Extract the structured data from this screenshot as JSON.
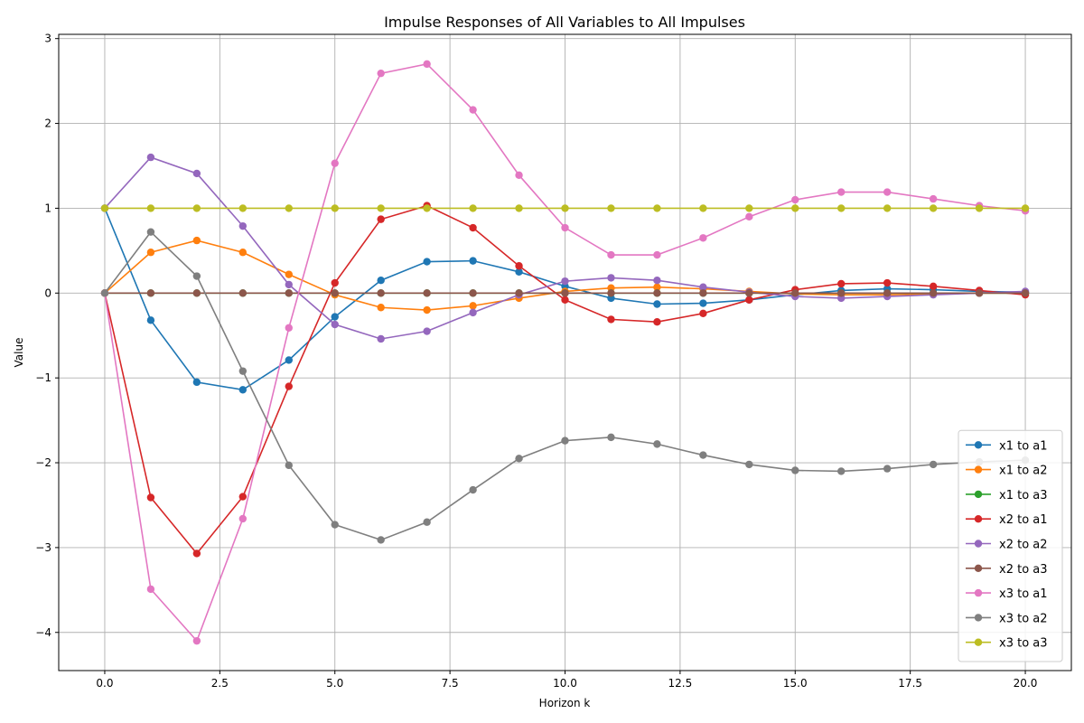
{
  "chart_data": {
    "type": "line",
    "title": "Impulse Responses of All Variables to All Impulses",
    "xlabel": "Horizon k",
    "ylabel": "Value",
    "xlim": [
      -1,
      21
    ],
    "ylim": [
      -4.45,
      3.05
    ],
    "x_ticks": [
      0,
      2.5,
      5,
      7.5,
      10,
      12.5,
      15,
      17.5,
      20
    ],
    "x_tick_labels": [
      "0.0",
      "2.5",
      "5.0",
      "7.5",
      "10.0",
      "12.5",
      "15.0",
      "17.5",
      "20.0"
    ],
    "y_ticks": [
      -4,
      -3,
      -2,
      -1,
      0,
      1,
      2,
      3
    ],
    "y_tick_labels": [
      "−4",
      "−3",
      "−2",
      "−1",
      "0",
      "1",
      "2",
      "3"
    ],
    "grid": true,
    "legend_position": "lower-right",
    "x": [
      0,
      1,
      2,
      3,
      4,
      5,
      6,
      7,
      8,
      9,
      10,
      11,
      12,
      13,
      14,
      15,
      16,
      17,
      18,
      19,
      20
    ],
    "series": [
      {
        "name": "x1 to a1",
        "color": "#1f77b4",
        "values": [
          1.0,
          -0.32,
          -1.05,
          -1.14,
          -0.79,
          -0.28,
          0.15,
          0.37,
          0.38,
          0.25,
          0.08,
          -0.06,
          -0.13,
          -0.12,
          -0.08,
          -0.02,
          0.03,
          0.05,
          0.04,
          0.02,
          0.01
        ]
      },
      {
        "name": "x1 to a2",
        "color": "#ff7f0e",
        "values": [
          0.0,
          0.48,
          0.62,
          0.48,
          0.22,
          -0.02,
          -0.17,
          -0.2,
          -0.15,
          -0.06,
          0.02,
          0.06,
          0.07,
          0.05,
          0.02,
          -0.01,
          -0.02,
          -0.02,
          -0.01,
          0.0,
          0.0
        ]
      },
      {
        "name": "x1 to a3",
        "color": "#2ca02c",
        "values": [
          0,
          0,
          0,
          0,
          0,
          0,
          0,
          0,
          0,
          0,
          0,
          0,
          0,
          0,
          0,
          0,
          0,
          0,
          0,
          0,
          0
        ]
      },
      {
        "name": "x2 to a1",
        "color": "#d62728",
        "values": [
          0.0,
          -2.41,
          -3.07,
          -2.4,
          -1.1,
          0.12,
          0.87,
          1.03,
          0.77,
          0.32,
          -0.08,
          -0.31,
          -0.34,
          -0.24,
          -0.08,
          0.04,
          0.11,
          0.12,
          0.08,
          0.03,
          -0.02
        ]
      },
      {
        "name": "x2 to a2",
        "color": "#9467bd",
        "values": [
          1.0,
          1.6,
          1.41,
          0.79,
          0.1,
          -0.37,
          -0.54,
          -0.45,
          -0.23,
          -0.02,
          0.14,
          0.18,
          0.15,
          0.07,
          0.01,
          -0.04,
          -0.06,
          -0.04,
          -0.02,
          0.0,
          0.02
        ]
      },
      {
        "name": "x2 to a3",
        "color": "#8c564b",
        "values": [
          0,
          0,
          0,
          0,
          0,
          0,
          0,
          0,
          0,
          0,
          0,
          0,
          0,
          0,
          0,
          0,
          0,
          0,
          0,
          0,
          0
        ]
      },
      {
        "name": "x3 to a1",
        "color": "#e377c2",
        "values": [
          0.0,
          -3.49,
          -4.1,
          -2.66,
          -0.41,
          1.53,
          2.59,
          2.7,
          2.16,
          1.39,
          0.77,
          0.45,
          0.45,
          0.65,
          0.9,
          1.1,
          1.19,
          1.19,
          1.11,
          1.03,
          0.97
        ]
      },
      {
        "name": "x3 to a2",
        "color": "#7f7f7f",
        "values": [
          0.0,
          0.72,
          0.2,
          -0.92,
          -2.03,
          -2.73,
          -2.91,
          -2.7,
          -2.32,
          -1.95,
          -1.74,
          -1.7,
          -1.78,
          -1.91,
          -2.02,
          -2.09,
          -2.1,
          -2.07,
          -2.02,
          -1.99,
          -1.97
        ]
      },
      {
        "name": "x3 to a3",
        "color": "#bcbd22",
        "values": [
          1,
          1,
          1,
          1,
          1,
          1,
          1,
          1,
          1,
          1,
          1,
          1,
          1,
          1,
          1,
          1,
          1,
          1,
          1,
          1,
          1
        ]
      }
    ]
  }
}
